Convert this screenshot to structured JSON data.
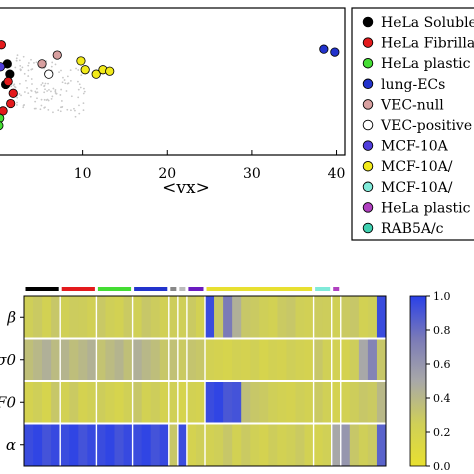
{
  "chart_data": [
    {
      "type": "scatter",
      "xlabel": "<vx>",
      "x_ticks": [
        10,
        20,
        30,
        40
      ],
      "xlim": [
        0,
        41
      ],
      "grid": false,
      "legend_position": "right",
      "series": [
        {
          "name": "HeLa Soluble",
          "color": "#000000",
          "points": [
            [
              1.1,
              0.62
            ],
            [
              1.4,
              0.55
            ],
            [
              0.9,
              0.48
            ]
          ]
        },
        {
          "name": "HeLa Fibrillar",
          "color": "#e31a1c",
          "points": [
            [
              0.4,
              0.75
            ],
            [
              1.2,
              0.5
            ],
            [
              1.8,
              0.42
            ],
            [
              0.6,
              0.3
            ],
            [
              1.5,
              0.35
            ]
          ]
        },
        {
          "name": "HeLa plastic",
          "color": "#44dd33",
          "points": [
            [
              0.2,
              0.25
            ],
            [
              0.1,
              0.2
            ]
          ]
        },
        {
          "name": "lung-ECs",
          "color": "#2233cc",
          "points": [
            [
              38.5,
              0.72
            ],
            [
              39.8,
              0.7
            ]
          ]
        },
        {
          "name": "VEC-null",
          "color": "#d8a0a0",
          "points": [
            [
              5.2,
              0.62
            ],
            [
              7.0,
              0.68
            ]
          ]
        },
        {
          "name": "VEC-positive",
          "color": "#ffffff",
          "points": [
            [
              6.0,
              0.55
            ]
          ]
        },
        {
          "name": "MCF-10A",
          "color": "#4f3ddb",
          "points": [
            [
              0.3,
              0.6
            ]
          ]
        },
        {
          "name": "MCF-10A/",
          "color": "#f2ea1a",
          "points": [
            [
              9.8,
              0.64
            ],
            [
              10.3,
              0.58
            ],
            [
              11.6,
              0.55
            ],
            [
              12.4,
              0.58
            ],
            [
              13.2,
              0.57
            ]
          ]
        },
        {
          "name": "MCF-10A/",
          "color": "#80ead9",
          "points": []
        },
        {
          "name": "HeLa plastic",
          "color": "#b040c0",
          "points": []
        },
        {
          "name": "RAB5A/c",
          "color": "#40d0b0",
          "points": []
        }
      ]
    },
    {
      "type": "heatmap",
      "row_labels": [
        "β",
        "σ0",
        "F0",
        "α"
      ],
      "group_colors": [
        "#000000",
        "#e31a1c",
        "#44dd33",
        "#2233cc",
        "#888888",
        "#bbbbbb",
        "#6a1ac0",
        "#e8e030",
        "#80ead9",
        "#b040c0"
      ],
      "colorbar": {
        "ticks": [
          "0.0",
          "0.2",
          "0.4",
          "0.6",
          "0.8",
          "1.0"
        ],
        "min": 0,
        "max": 1,
        "colors": [
          "#e8e030",
          "#cfcf58",
          "#a8a8a8",
          "#7a7ab8",
          "#2a40e8"
        ]
      },
      "values": [
        [
          0.25,
          0.28,
          0.22,
          0.3,
          0.24,
          0.27,
          0.26,
          0.23,
          0.29,
          0.25,
          0.22,
          0.28,
          0.24,
          0.3,
          0.27,
          0.23,
          0.26,
          0.25,
          0.28,
          0.22,
          0.95,
          0.3,
          0.75,
          0.45,
          0.3,
          0.28,
          0.25,
          0.22,
          0.28,
          0.3,
          0.25,
          0.23,
          0.27,
          0.26,
          0.24,
          0.28,
          0.3,
          0.22,
          0.25,
          0.95
        ],
        [
          0.35,
          0.4,
          0.45,
          0.38,
          0.42,
          0.36,
          0.4,
          0.44,
          0.33,
          0.38,
          0.42,
          0.35,
          0.45,
          0.4,
          0.36,
          0.3,
          0.34,
          0.28,
          0.32,
          0.3,
          0.22,
          0.2,
          0.18,
          0.22,
          0.2,
          0.24,
          0.18,
          0.22,
          0.2,
          0.25,
          0.22,
          0.2,
          0.3,
          0.24,
          0.22,
          0.2,
          0.26,
          0.5,
          0.7,
          0.3
        ],
        [
          0.2,
          0.25,
          0.18,
          0.3,
          0.22,
          0.28,
          0.2,
          0.24,
          0.26,
          0.22,
          0.18,
          0.24,
          0.3,
          0.22,
          0.26,
          0.2,
          0.24,
          0.18,
          0.22,
          0.2,
          0.95,
          0.98,
          0.9,
          0.92,
          0.35,
          0.3,
          0.28,
          0.25,
          0.22,
          0.2,
          0.25,
          0.22,
          0.28,
          0.24,
          0.2,
          0.22,
          0.26,
          0.3,
          0.28,
          0.4
        ],
        [
          0.95,
          0.98,
          0.92,
          0.96,
          0.95,
          0.98,
          0.92,
          0.96,
          0.95,
          0.98,
          0.92,
          0.96,
          0.95,
          0.98,
          0.92,
          0.96,
          0.3,
          0.95,
          0.2,
          0.25,
          0.22,
          0.25,
          0.3,
          0.22,
          0.28,
          0.24,
          0.2,
          0.26,
          0.22,
          0.25,
          0.28,
          0.22,
          0.2,
          0.24,
          0.5,
          0.6,
          0.3,
          0.25,
          0.28,
          0.85
        ]
      ]
    }
  ]
}
